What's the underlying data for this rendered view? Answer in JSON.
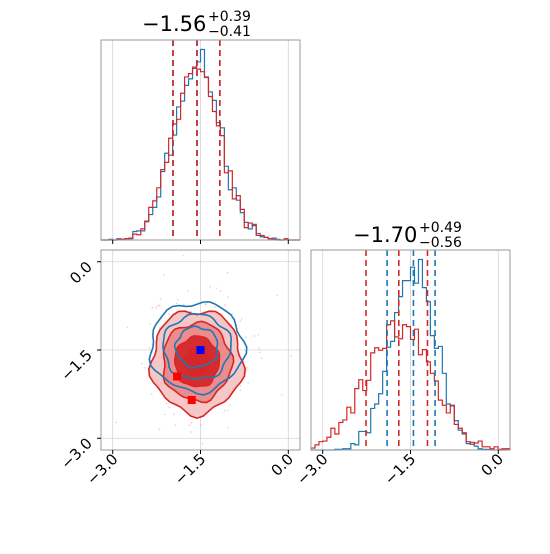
{
  "chart_data": {
    "type": "corner",
    "axes_range": [
      -3.2,
      0.2
    ],
    "ticks": [
      -3.0,
      -1.5,
      0.0
    ],
    "tick_labels": [
      "−3.0",
      "−1.5",
      "0.0"
    ],
    "grid": true,
    "series": [
      {
        "color": "#1f77b4",
        "p1": {
          "mean": -1.56,
          "std": 0.4,
          "quantiles": [
            -1.97,
            -1.56,
            -1.17
          ]
        },
        "p2": {
          "mean": -1.45,
          "std": 0.38,
          "quantiles": [
            -1.9,
            -1.45,
            -1.08
          ]
        },
        "marker": [
          -1.5,
          -1.5
        ]
      },
      {
        "color": "#d62728",
        "p1": {
          "mean": -1.56,
          "std": 0.4,
          "quantiles": [
            -1.97,
            -1.56,
            -1.17
          ]
        },
        "p2": {
          "mean": -1.7,
          "std": 0.55,
          "quantiles": [
            -2.26,
            -1.7,
            -1.21
          ]
        },
        "markers": [
          [
            -1.9,
            -1.95
          ],
          [
            -1.65,
            -2.35
          ]
        ]
      }
    ],
    "panels": [
      {
        "kind": "hist",
        "param": 1,
        "title": {
          "value": "−1.56",
          "plus": "+0.39",
          "minus": "−0.41"
        }
      },
      {
        "kind": "hist",
        "param": 2,
        "title": {
          "value": "−1.70",
          "plus": "+0.49",
          "minus": "−0.56"
        }
      },
      {
        "kind": "contour",
        "params": [
          1,
          2
        ]
      }
    ]
  }
}
